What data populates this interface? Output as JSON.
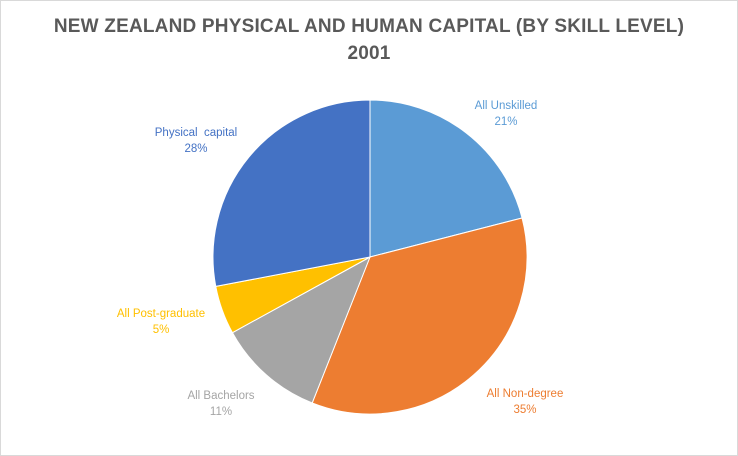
{
  "chart_data": {
    "type": "pie",
    "title": "NEW ZEALAND PHYSICAL AND HUMAN CAPITAL (BY SKILL LEVEL)",
    "subtitle": "2001",
    "slices": [
      {
        "name": "All Unskilled",
        "label": "21%",
        "value": 21,
        "color": "#5b9bd5",
        "label_color": "#5b9bd5"
      },
      {
        "name": "All Non-degree",
        "label": "35%",
        "value": 35,
        "color": "#ed7d31",
        "label_color": "#ed7d31"
      },
      {
        "name": "All Bachelors",
        "label": "11%",
        "value": 11,
        "color": "#a5a5a5",
        "label_color": "#a5a5a5"
      },
      {
        "name": "All Post-graduate",
        "label": "5%",
        "value": 5,
        "color": "#ffc000",
        "label_color": "#ffc000"
      },
      {
        "name": "Physical  capital",
        "label": "28%",
        "value": 28,
        "color": "#4472c4",
        "label_color": "#4472c4"
      }
    ],
    "legend": "none"
  }
}
